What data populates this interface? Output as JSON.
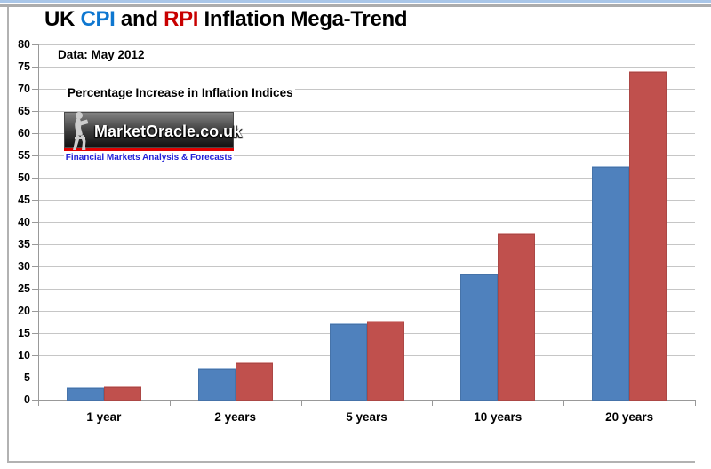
{
  "title": {
    "parts": [
      {
        "text": "UK ",
        "color": "#000000"
      },
      {
        "text": "CPI",
        "color": "#0e77d0"
      },
      {
        "text": " and ",
        "color": "#000000"
      },
      {
        "text": "RPI",
        "color": "#c80000"
      },
      {
        "text": " Inflation Mega-Trend",
        "color": "#000000"
      }
    ]
  },
  "annotations": {
    "data_note": "Data: May 2012",
    "subtitle": "Percentage Increase in Inflation Indices"
  },
  "logo": {
    "brand": "MarketOracle.co.uk",
    "tagline": "Financial Markets Analysis & Forecasts",
    "tagline_color": "#2222d8",
    "stripe_color": "#e00000",
    "figure_icon": "seated-reader-statue"
  },
  "chart_data": {
    "type": "bar",
    "title": "UK CPI and RPI Inflation Mega-Trend",
    "categories": [
      "1 year",
      "2 years",
      "5 years",
      "10 years",
      "20 years"
    ],
    "series": [
      {
        "name": "CPI",
        "color": "#4f81bd",
        "values": [
          2.9,
          7.3,
          17.2,
          28.5,
          52.6
        ]
      },
      {
        "name": "RPI",
        "color": "#c0504d",
        "values": [
          3.1,
          8.4,
          17.8,
          37.7,
          74.0
        ]
      }
    ],
    "xlabel": "",
    "ylabel": "",
    "ylim": [
      0,
      80
    ],
    "yticks": [
      0,
      5,
      10,
      15,
      20,
      25,
      30,
      35,
      40,
      45,
      50,
      55,
      60,
      65,
      70,
      75,
      80
    ],
    "grid": true,
    "legend_position": "none"
  },
  "colors": {
    "gridline": "#c6c6c6",
    "axis": "#999999",
    "edge_blue": "#a9c6e8",
    "edge_gray": "#acacac",
    "border": "#b2b2b2"
  }
}
